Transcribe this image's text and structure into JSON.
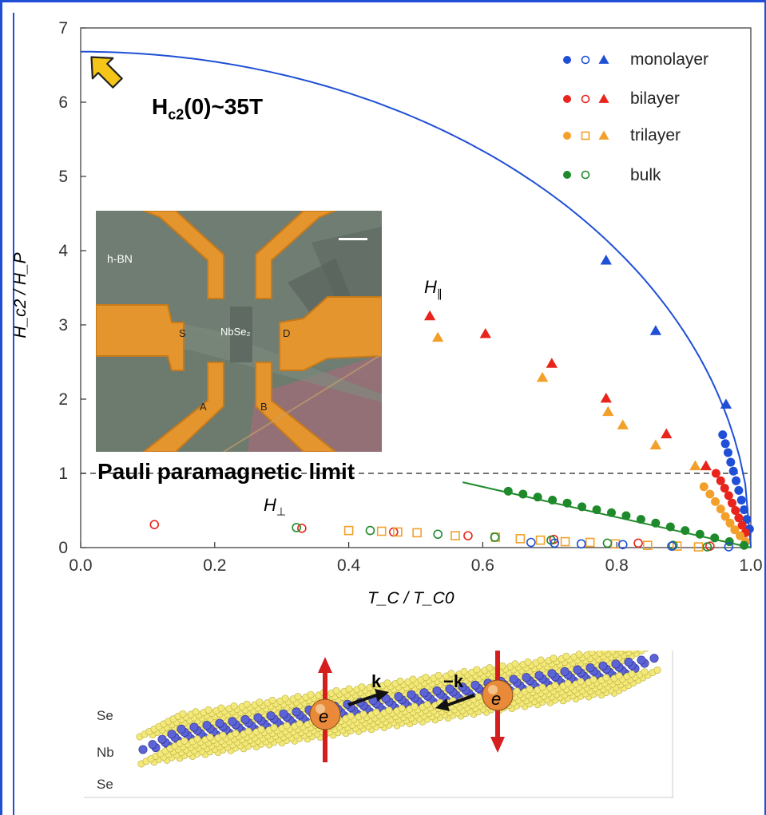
{
  "chart_data": {
    "type": "scatter",
    "xlabel": "T_C / T_C0",
    "ylabel": "H_c2 / H_P",
    "xlim": [
      0.0,
      1.0
    ],
    "ylim": [
      0,
      7
    ],
    "xticks": [
      "0.0",
      "0.2",
      "0.4",
      "0.6",
      "0.8",
      "1.0"
    ],
    "yticks": [
      "0",
      "1",
      "2",
      "3",
      "4",
      "5",
      "6",
      "7"
    ],
    "legend_position": "top-right",
    "legend": [
      {
        "label": "monolayer",
        "color": "#1f4fd6",
        "symbols": [
          "filled-circle",
          "open-circle",
          "triangle"
        ]
      },
      {
        "label": "bilayer",
        "color": "#e8241c",
        "symbols": [
          "filled-circle",
          "open-circle",
          "triangle"
        ]
      },
      {
        "label": "trilayer",
        "color": "#f2a02a",
        "symbols": [
          "filled-circle",
          "open-square",
          "triangle"
        ]
      },
      {
        "label": "bulk",
        "color": "#1f8a2b",
        "symbols": [
          "filled-circle",
          "open-circle"
        ]
      }
    ],
    "series": [
      {
        "name": "monolayer",
        "marker": "triangle",
        "color": "#1f4fd6",
        "points": [
          [
            0.784,
            3.87
          ],
          [
            0.858,
            2.92
          ],
          [
            0.963,
            1.93
          ]
        ]
      },
      {
        "name": "bilayer",
        "marker": "triangle",
        "color": "#e8241c",
        "points": [
          [
            0.521,
            3.12
          ],
          [
            0.604,
            2.88
          ],
          [
            0.703,
            2.48
          ],
          [
            0.784,
            2.01
          ],
          [
            0.874,
            1.53
          ],
          [
            0.933,
            1.1
          ]
        ]
      },
      {
        "name": "trilayer",
        "marker": "triangle",
        "color": "#f2a02a",
        "points": [
          [
            0.533,
            2.83
          ],
          [
            0.689,
            2.29
          ],
          [
            0.787,
            1.83
          ],
          [
            0.809,
            1.65
          ],
          [
            0.858,
            1.38
          ],
          [
            0.917,
            1.1
          ]
        ]
      },
      {
        "name": "monolayer",
        "marker": "filled-circle",
        "color": "#1f4fd6",
        "points": [
          [
            0.958,
            1.52
          ],
          [
            0.962,
            1.4
          ],
          [
            0.966,
            1.28
          ],
          [
            0.97,
            1.15
          ],
          [
            0.974,
            1.03
          ],
          [
            0.978,
            0.9
          ],
          [
            0.982,
            0.77
          ],
          [
            0.986,
            0.64
          ],
          [
            0.99,
            0.51
          ],
          [
            0.994,
            0.38
          ],
          [
            0.998,
            0.25
          ]
        ]
      },
      {
        "name": "bilayer",
        "marker": "filled-circle",
        "color": "#e8241c",
        "points": [
          [
            0.948,
            1.0
          ],
          [
            0.955,
            0.9
          ],
          [
            0.961,
            0.8
          ],
          [
            0.967,
            0.7
          ],
          [
            0.972,
            0.6
          ],
          [
            0.977,
            0.5
          ],
          [
            0.982,
            0.4
          ],
          [
            0.987,
            0.3
          ],
          [
            0.992,
            0.2
          ]
        ]
      },
      {
        "name": "trilayer",
        "marker": "filled-circle",
        "color": "#f2a02a",
        "points": [
          [
            0.93,
            0.82
          ],
          [
            0.939,
            0.72
          ],
          [
            0.947,
            0.62
          ],
          [
            0.955,
            0.52
          ],
          [
            0.962,
            0.42
          ],
          [
            0.969,
            0.33
          ],
          [
            0.976,
            0.24
          ],
          [
            0.984,
            0.16
          ],
          [
            0.992,
            0.08
          ]
        ]
      },
      {
        "name": "bulk",
        "marker": "filled-circle",
        "color": "#1f8a2b",
        "points": [
          [
            0.638,
            0.76
          ],
          [
            0.66,
            0.72
          ],
          [
            0.682,
            0.68
          ],
          [
            0.704,
            0.64
          ],
          [
            0.726,
            0.6
          ],
          [
            0.748,
            0.55
          ],
          [
            0.77,
            0.51
          ],
          [
            0.792,
            0.47
          ],
          [
            0.814,
            0.43
          ],
          [
            0.836,
            0.38
          ],
          [
            0.858,
            0.33
          ],
          [
            0.88,
            0.28
          ],
          [
            0.902,
            0.23
          ],
          [
            0.924,
            0.18
          ],
          [
            0.946,
            0.13
          ],
          [
            0.968,
            0.08
          ],
          [
            0.99,
            0.03
          ]
        ]
      },
      {
        "name": "bilayer",
        "marker": "open-circle",
        "color": "#e8241c",
        "points": [
          [
            0.11,
            0.31
          ],
          [
            0.33,
            0.26
          ],
          [
            0.467,
            0.21
          ],
          [
            0.578,
            0.16
          ],
          [
            0.706,
            0.11
          ],
          [
            0.832,
            0.06
          ],
          [
            0.939,
            0.02
          ]
        ]
      },
      {
        "name": "trilayer",
        "marker": "open-square",
        "color": "#f2a02a",
        "points": [
          [
            0.4,
            0.23
          ],
          [
            0.449,
            0.22
          ],
          [
            0.473,
            0.21
          ],
          [
            0.502,
            0.2
          ],
          [
            0.559,
            0.16
          ],
          [
            0.619,
            0.14
          ],
          [
            0.656,
            0.12
          ],
          [
            0.686,
            0.1
          ],
          [
            0.723,
            0.08
          ],
          [
            0.76,
            0.07
          ],
          [
            0.798,
            0.05
          ],
          [
            0.846,
            0.03
          ],
          [
            0.89,
            0.02
          ],
          [
            0.922,
            0.01
          ]
        ]
      },
      {
        "name": "bulk",
        "marker": "open-circle",
        "color": "#1f8a2b",
        "points": [
          [
            0.322,
            0.27
          ],
          [
            0.432,
            0.23
          ],
          [
            0.533,
            0.18
          ],
          [
            0.618,
            0.14
          ],
          [
            0.702,
            0.1
          ],
          [
            0.786,
            0.06
          ],
          [
            0.884,
            0.03
          ],
          [
            0.935,
            0.01
          ]
        ]
      },
      {
        "name": "monolayer",
        "marker": "open-circle",
        "color": "#1f4fd6",
        "points": [
          [
            0.672,
            0.07
          ],
          [
            0.707,
            0.06
          ],
          [
            0.747,
            0.05
          ],
          [
            0.809,
            0.04
          ],
          [
            0.882,
            0.02
          ],
          [
            0.967,
            0.01
          ]
        ]
      }
    ],
    "fit_curves": [
      {
        "name": "monolayer fit",
        "color": "#1f4fd6",
        "x0": 1.0,
        "y_at_zero": 6.68
      },
      {
        "name": "bulk fit",
        "color": "#1f8a2b",
        "points": [
          [
            0.57,
            0.88
          ],
          [
            1.0,
            0.0
          ]
        ]
      }
    ],
    "reference_line": {
      "y": 1,
      "style": "dashed",
      "label": "Pauli paramagnetic limit"
    },
    "annotations": {
      "hc2_zero": "H",
      "hc2_zero_sub": "c2",
      "hc2_zero_rest": "(0)~35T",
      "h_parallel": "H",
      "h_parallel_sub": "∥",
      "h_perp": "H",
      "h_perp_sub": "⊥"
    }
  },
  "micrograph": {
    "hbn_label": "h-BN",
    "center_label": "NbSe₂",
    "s_label": "S",
    "d_label": "D",
    "a_label": "A",
    "b_label": "B"
  },
  "lattice": {
    "layers": [
      "Se",
      "Nb",
      "Se"
    ],
    "k_label": "k",
    "minus_k_label": "−k",
    "electron_label": "e"
  },
  "colors": {
    "frame": "#1f4fd6",
    "arrow": "#f5c518"
  }
}
